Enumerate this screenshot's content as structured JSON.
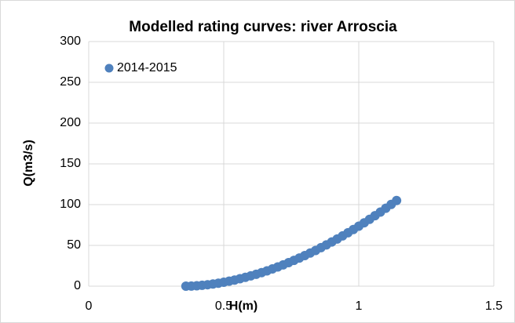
{
  "chart_data": {
    "type": "scatter",
    "title": "Modelled rating curves: river Arroscia",
    "x_label": "H(m)",
    "y_label": "Q(m3/s)",
    "series": [
      {
        "name": "2014-2015",
        "color": "#4f81bd",
        "x": [
          0.36,
          0.38,
          0.4,
          0.42,
          0.44,
          0.46,
          0.48,
          0.5,
          0.52,
          0.54,
          0.56,
          0.58,
          0.6,
          0.62,
          0.64,
          0.66,
          0.68,
          0.7,
          0.72,
          0.74,
          0.76,
          0.78,
          0.8,
          0.82,
          0.84,
          0.86,
          0.88,
          0.9,
          0.92,
          0.94,
          0.96,
          0.98,
          1.0,
          1.02,
          1.04,
          1.06,
          1.08,
          1.1,
          1.12,
          1.14
        ],
        "values": [
          0,
          0.14,
          0.5,
          1.04,
          1.74,
          2.6,
          3.6,
          4.8,
          6.1,
          7.5,
          9.1,
          10.8,
          12.6,
          14.5,
          16.6,
          18.8,
          21.1,
          23.6,
          26.1,
          28.8,
          31.6,
          34.5,
          37.5,
          40.6,
          43.8,
          47.2,
          50.6,
          54.2,
          57.8,
          61.6,
          65.5,
          69.5,
          73.6,
          77.7,
          82.0,
          86.4,
          90.9,
          95.5,
          100.2,
          105
        ]
      }
    ],
    "xlim": [
      0,
      1.5
    ],
    "xticks": [
      0,
      0.5,
      1,
      1.5
    ],
    "ylim": [
      0,
      300
    ],
    "yticks": [
      0,
      50,
      100,
      150,
      200,
      250,
      300
    ],
    "grid": true,
    "legend": "top-left"
  }
}
